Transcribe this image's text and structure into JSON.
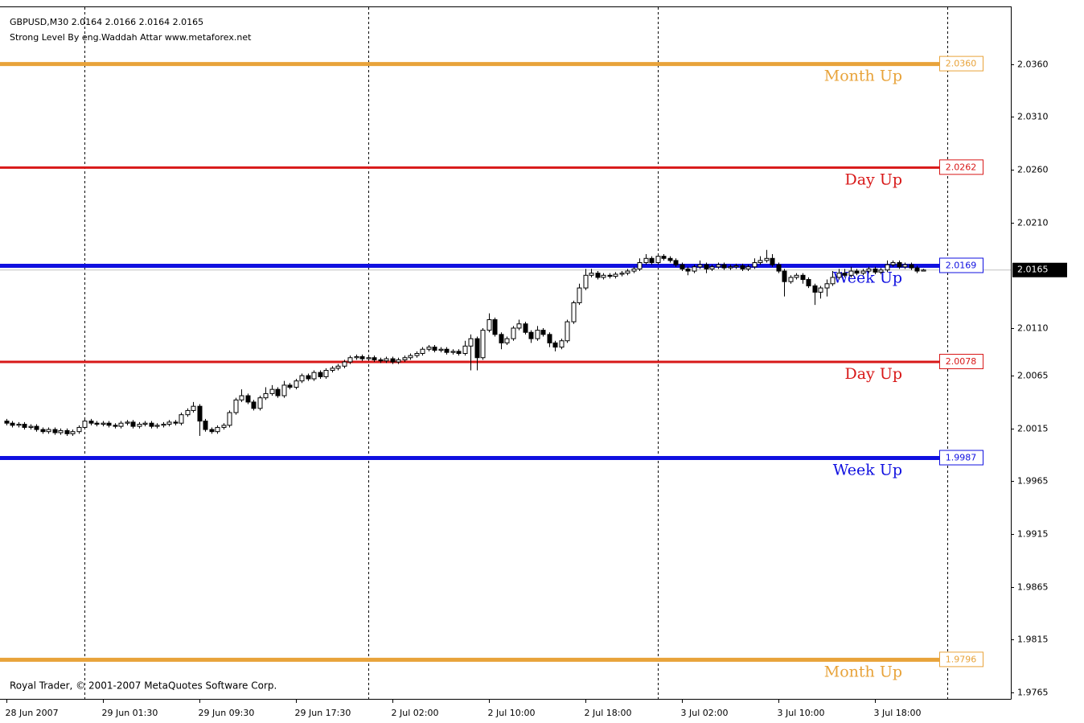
{
  "chart_data": {
    "type": "candlestick",
    "title": "GBPUSD,M30  2.0164 2.0166 2.0164 2.0165",
    "subtitle": "Strong Level By eng.Waddah Attar www.metaforex.net",
    "footer": "Royal Trader, © 2001-2007 MetaQuotes Software Corp.",
    "xlim": [
      -1,
      166.6
    ],
    "ylim": [
      1.9759,
      2.0413
    ],
    "xticks": [
      {
        "value": 0,
        "label": "28 Jun 2007"
      },
      {
        "value": 16,
        "label": "29 Jun 01:30"
      },
      {
        "value": 32,
        "label": "29 Jun 09:30"
      },
      {
        "value": 48,
        "label": "29 Jun 17:30"
      },
      {
        "value": 64,
        "label": "2 Jul 02:00"
      },
      {
        "value": 80,
        "label": "2 Jul 10:00"
      },
      {
        "value": 96,
        "label": "2 Jul 18:00"
      },
      {
        "value": 112,
        "label": "3 Jul 02:00"
      },
      {
        "value": 128,
        "label": "3 Jul 10:00"
      },
      {
        "value": 144,
        "label": "3 Jul 18:00"
      }
    ],
    "yticks": [
      {
        "value": 2.036,
        "label": "2.0360"
      },
      {
        "value": 2.031,
        "label": "2.0310"
      },
      {
        "value": 2.026,
        "label": "2.0260"
      },
      {
        "value": 2.021,
        "label": "2.0210"
      },
      {
        "value": 2.011,
        "label": "2.0110"
      },
      {
        "value": 2.0065,
        "label": "2.0065"
      },
      {
        "value": 2.0015,
        "label": "2.0015"
      },
      {
        "value": 1.9965,
        "label": "1.9965"
      },
      {
        "value": 1.9915,
        "label": "1.9915"
      },
      {
        "value": 1.9865,
        "label": "1.9865"
      },
      {
        "value": 1.9815,
        "label": "1.9815"
      },
      {
        "value": 1.9765,
        "label": "1.9765"
      }
    ],
    "separators": [
      13,
      60,
      108,
      156
    ],
    "levels": [
      {
        "name": "Month Up",
        "value": 2.036,
        "label": "2.0360",
        "color": "#e8a33a",
        "width": 5
      },
      {
        "name": "Day Up",
        "value": 2.0262,
        "label": "2.0262",
        "color": "#d81818",
        "width": 3
      },
      {
        "name": "Week Up",
        "value": 2.0169,
        "label": "2.0169",
        "color": "#1010e0",
        "width": 5
      },
      {
        "name": "Day Up",
        "value": 2.0078,
        "label": "2.0078",
        "color": "#d81818",
        "width": 3
      },
      {
        "name": "Week Up",
        "value": 1.9987,
        "label": "1.9987",
        "color": "#1010e0",
        "width": 5
      },
      {
        "name": "Month Up",
        "value": 1.9796,
        "label": "1.9796",
        "color": "#e8a33a",
        "width": 5
      }
    ],
    "current": {
      "value": 2.0165,
      "label": "2.0165"
    },
    "open": [
      2.0022,
      2.002,
      2.0018,
      2.0019,
      2.0016,
      2.0017,
      2.0014,
      2.0012,
      2.0014,
      2.0011,
      2.0013,
      2.001,
      2.0012,
      2.0016,
      2.0022,
      2.002,
      2.0019,
      2.002,
      2.0018,
      2.0017,
      2.002,
      2.0021,
      2.0017,
      2.0019,
      2.002,
      2.0017,
      2.0018,
      2.0019,
      2.0021,
      2.002,
      2.0028,
      2.0032,
      2.0036,
      2.0022,
      2.0014,
      2.0012,
      2.0016,
      2.0018,
      2.003,
      2.0042,
      2.0046,
      2.004,
      2.0034,
      2.0044,
      2.0048,
      2.0052,
      2.0046,
      2.0056,
      2.0054,
      2.006,
      2.0065,
      2.0062,
      2.0068,
      2.0064,
      2.007,
      2.0072,
      2.0074,
      2.0078,
      2.0082,
      2.0083,
      2.0081,
      2.0082,
      2.008,
      2.0079,
      2.0081,
      2.0078,
      2.008,
      2.0082,
      2.0084,
      2.0086,
      2.009,
      2.0092,
      2.0089,
      2.009,
      2.0087,
      2.0088,
      2.0086,
      2.0093,
      2.01,
      2.0082,
      2.0108,
      2.0118,
      2.0104,
      2.0096,
      2.01,
      2.011,
      2.0114,
      2.0106,
      2.01,
      2.0108,
      2.0104,
      2.0096,
      2.0092,
      2.0098,
      2.0116,
      2.0134,
      2.0148,
      2.016,
      2.0162,
      2.0158,
      2.016,
      2.0159,
      2.0161,
      2.0162,
      2.0164,
      2.0166,
      2.0172,
      2.0176,
      2.0172,
      2.0178,
      2.0176,
      2.0174,
      2.017,
      2.0166,
      2.0164,
      2.0168,
      2.017,
      2.0166,
      2.0168,
      2.017,
      2.0167,
      2.0168,
      2.0169,
      2.0166,
      2.0168,
      2.0172,
      2.0174,
      2.0176,
      2.017,
      2.0164,
      2.0154,
      2.0158,
      2.016,
      2.0156,
      2.015,
      2.0144,
      2.0148,
      2.0152,
      2.0158,
      2.0162,
      2.016,
      2.0164,
      2.0162,
      2.0164,
      2.0166,
      2.0163,
      2.0165,
      2.017,
      2.0172,
      2.0168,
      2.017,
      2.0167,
      2.0164
    ],
    "high": [
      2.0024,
      2.0022,
      2.0021,
      2.0021,
      2.0019,
      2.0019,
      2.0016,
      2.0016,
      2.0016,
      2.0015,
      2.0015,
      2.0014,
      2.0018,
      2.0024,
      2.0024,
      2.0022,
      2.0022,
      2.0022,
      2.002,
      2.0022,
      2.0023,
      2.0023,
      2.0021,
      2.0022,
      2.0022,
      2.002,
      2.0021,
      2.0023,
      2.0023,
      2.003,
      2.0034,
      2.004,
      2.0038,
      2.0024,
      2.0016,
      2.0018,
      2.002,
      2.0032,
      2.0044,
      2.0052,
      2.0048,
      2.0042,
      2.0046,
      2.0054,
      2.0056,
      2.0054,
      2.006,
      2.0058,
      2.0062,
      2.0067,
      2.0067,
      2.007,
      2.007,
      2.0072,
      2.0074,
      2.0076,
      2.008,
      2.0084,
      2.0085,
      2.0085,
      2.0084,
      2.0084,
      2.0082,
      2.0083,
      2.0083,
      2.0082,
      2.0084,
      2.0086,
      2.0088,
      2.0092,
      2.0094,
      2.0094,
      2.0092,
      2.0092,
      2.009,
      2.009,
      2.0098,
      2.0104,
      2.0102,
      2.011,
      2.0124,
      2.012,
      2.0106,
      2.0102,
      2.0112,
      2.0118,
      2.0116,
      2.0108,
      2.0112,
      2.011,
      2.0106,
      2.0098,
      2.01,
      2.0118,
      2.0136,
      2.0152,
      2.0166,
      2.0166,
      2.0164,
      2.0162,
      2.0162,
      2.0163,
      2.0164,
      2.0166,
      2.0168,
      2.0176,
      2.018,
      2.0178,
      2.018,
      2.018,
      2.0178,
      2.0176,
      2.0172,
      2.0168,
      2.017,
      2.0174,
      2.0172,
      2.017,
      2.0172,
      2.0172,
      2.017,
      2.0171,
      2.0171,
      2.017,
      2.0176,
      2.0178,
      2.0184,
      2.018,
      2.0172,
      2.0166,
      2.016,
      2.0162,
      2.0162,
      2.0158,
      2.0152,
      2.015,
      2.0156,
      2.0164,
      2.0166,
      2.0166,
      2.0168,
      2.0166,
      2.0166,
      2.0168,
      2.0168,
      2.0167,
      2.0174,
      2.0174,
      2.0174,
      2.0172,
      2.0172,
      2.0169,
      2.0166
    ],
    "low": [
      2.0018,
      2.0016,
      2.0016,
      2.0014,
      2.0014,
      2.0012,
      2.001,
      2.001,
      2.0009,
      2.0009,
      2.0008,
      2.0008,
      2.001,
      2.0014,
      2.0018,
      2.0017,
      2.0017,
      2.0016,
      2.0015,
      2.0015,
      2.0018,
      2.0015,
      2.0015,
      2.0017,
      2.0015,
      2.0015,
      2.0016,
      2.0017,
      2.0018,
      2.0018,
      2.0026,
      2.003,
      2.0008,
      2.0012,
      2.001,
      2.001,
      2.0014,
      2.0016,
      2.0028,
      2.004,
      2.0038,
      2.0032,
      2.0032,
      2.0042,
      2.0046,
      2.0044,
      2.0044,
      2.0052,
      2.0052,
      2.0058,
      2.006,
      2.006,
      2.0062,
      2.0062,
      2.0068,
      2.007,
      2.0072,
      2.0076,
      2.008,
      2.0079,
      2.0079,
      2.0078,
      2.0077,
      2.0077,
      2.0076,
      2.0076,
      2.0078,
      2.008,
      2.0082,
      2.0084,
      2.0088,
      2.0087,
      2.0087,
      2.0085,
      2.0085,
      2.0084,
      2.0084,
      2.007,
      2.007,
      2.008,
      2.0106,
      2.0102,
      2.009,
      2.0094,
      2.0098,
      2.0108,
      2.0104,
      2.0096,
      2.0098,
      2.0102,
      2.0092,
      2.0088,
      2.009,
      2.0096,
      2.0114,
      2.0132,
      2.0146,
      2.0158,
      2.0156,
      2.0156,
      2.0157,
      2.0157,
      2.0159,
      2.016,
      2.0162,
      2.0164,
      2.017,
      2.017,
      2.017,
      2.0174,
      2.0172,
      2.0168,
      2.0164,
      2.016,
      2.0162,
      2.0166,
      2.0162,
      2.0164,
      2.0166,
      2.0165,
      2.0165,
      2.0166,
      2.0164,
      2.0164,
      2.0166,
      2.017,
      2.0172,
      2.0168,
      2.0162,
      2.014,
      2.0152,
      2.0156,
      2.0152,
      2.0148,
      2.0132,
      2.0138,
      2.014,
      2.015,
      2.0156,
      2.0158,
      2.0158,
      2.016,
      2.016,
      2.0162,
      2.0161,
      2.0161,
      2.0163,
      2.0168,
      2.0166,
      2.0166,
      2.0165,
      2.0162,
      2.0164
    ],
    "close": [
      2.002,
      2.0018,
      2.0019,
      2.0016,
      2.0017,
      2.0014,
      2.0012,
      2.0014,
      2.0011,
      2.0013,
      2.001,
      2.0012,
      2.0016,
      2.0022,
      2.002,
      2.0019,
      2.002,
      2.0018,
      2.0017,
      2.002,
      2.0021,
      2.0017,
      2.0019,
      2.002,
      2.0017,
      2.0018,
      2.0019,
      2.0021,
      2.002,
      2.0028,
      2.0032,
      2.0036,
      2.0022,
      2.0014,
      2.0012,
      2.0016,
      2.0018,
      2.003,
      2.0042,
      2.0046,
      2.004,
      2.0034,
      2.0044,
      2.0048,
      2.0052,
      2.0046,
      2.0056,
      2.0054,
      2.006,
      2.0065,
      2.0062,
      2.0068,
      2.0064,
      2.007,
      2.0072,
      2.0074,
      2.0078,
      2.0082,
      2.0083,
      2.0081,
      2.0082,
      2.008,
      2.0079,
      2.0081,
      2.0078,
      2.008,
      2.0082,
      2.0084,
      2.0086,
      2.009,
      2.0092,
      2.0089,
      2.009,
      2.0087,
      2.0088,
      2.0086,
      2.0093,
      2.01,
      2.0082,
      2.0108,
      2.0118,
      2.0104,
      2.0096,
      2.01,
      2.011,
      2.0114,
      2.0106,
      2.01,
      2.0108,
      2.0104,
      2.0096,
      2.0092,
      2.0098,
      2.0116,
      2.0134,
      2.0148,
      2.016,
      2.0162,
      2.0158,
      2.016,
      2.0159,
      2.0161,
      2.0162,
      2.0164,
      2.0166,
      2.0172,
      2.0176,
      2.0172,
      2.0178,
      2.0176,
      2.0174,
      2.017,
      2.0166,
      2.0164,
      2.0168,
      2.017,
      2.0166,
      2.0168,
      2.017,
      2.0167,
      2.0168,
      2.0169,
      2.0166,
      2.0168,
      2.0172,
      2.0174,
      2.0176,
      2.017,
      2.0164,
      2.0154,
      2.0158,
      2.016,
      2.0156,
      2.015,
      2.0144,
      2.0148,
      2.0152,
      2.0158,
      2.0162,
      2.016,
      2.0164,
      2.0162,
      2.0164,
      2.0166,
      2.0163,
      2.0165,
      2.017,
      2.0172,
      2.0168,
      2.017,
      2.0167,
      2.0164,
      2.0165
    ]
  }
}
